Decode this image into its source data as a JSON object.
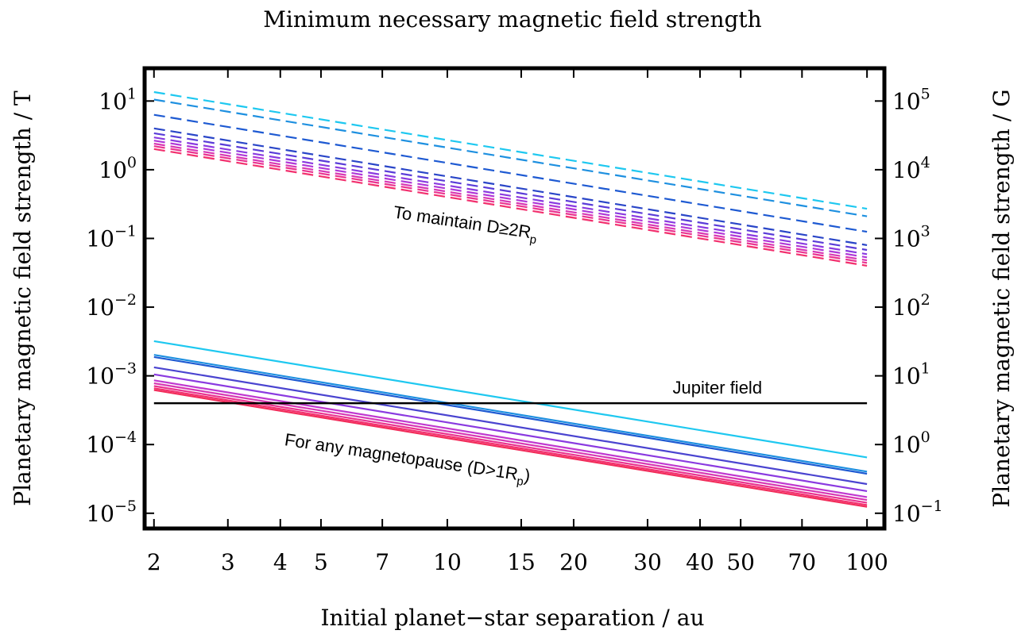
{
  "chart_data": {
    "type": "line",
    "title": "Minimum necessary magnetic field strength",
    "xlabel": "Initial planet−star separation / au",
    "ylabel_left": "Planetary magnetic field strength / T",
    "ylabel_right": "Planetary magnetic field strength / G",
    "xscale": "log",
    "yscale": "log",
    "xlim": [
      1.9,
      110
    ],
    "ylim": [
      6e-06,
      30
    ],
    "grid": false,
    "x_ticks": [
      2,
      3,
      4,
      5,
      7,
      10,
      15,
      20,
      30,
      40,
      50,
      70,
      100
    ],
    "x_tick_labels": [
      "2",
      "3",
      "4",
      "5",
      "7",
      "10",
      "15",
      "20",
      "30",
      "40",
      "50",
      "70",
      "100"
    ],
    "y_left_ticks": [
      {
        "value": 10,
        "base": "10",
        "exp": "1"
      },
      {
        "value": 1,
        "base": "10",
        "exp": "0"
      },
      {
        "value": 0.1,
        "base": "10",
        "exp": "−1"
      },
      {
        "value": 0.01,
        "base": "10",
        "exp": "−2"
      },
      {
        "value": 0.001,
        "base": "10",
        "exp": "−3"
      },
      {
        "value": 0.0001,
        "base": "10",
        "exp": "−4"
      },
      {
        "value": 1e-05,
        "base": "10",
        "exp": "−5"
      }
    ],
    "y_right_ticks": [
      {
        "value": 10,
        "base": "10",
        "exp": "5"
      },
      {
        "value": 1,
        "base": "10",
        "exp": "4"
      },
      {
        "value": 0.1,
        "base": "10",
        "exp": "3"
      },
      {
        "value": 0.01,
        "base": "10",
        "exp": "2"
      },
      {
        "value": 0.001,
        "base": "10",
        "exp": "1"
      },
      {
        "value": 0.0001,
        "base": "10",
        "exp": "0"
      },
      {
        "value": 1e-05,
        "base": "10",
        "exp": "−1"
      }
    ],
    "series": [
      {
        "group": "D>=2Rp",
        "style": "dashed",
        "color": "#1ec8f0",
        "x": [
          2,
          100
        ],
        "y": [
          13.5,
          0.27
        ]
      },
      {
        "group": "D>=2Rp",
        "style": "dashed",
        "color": "#1e90e0",
        "x": [
          2,
          100
        ],
        "y": [
          10.5,
          0.21
        ]
      },
      {
        "group": "D>=2Rp",
        "style": "dashed",
        "color": "#1e5ad2",
        "x": [
          2,
          100
        ],
        "y": [
          6.3,
          0.125
        ]
      },
      {
        "group": "D>=2Rp",
        "style": "dashed",
        "color": "#2a46c8",
        "x": [
          2,
          100
        ],
        "y": [
          4.0,
          0.08
        ]
      },
      {
        "group": "D>=2Rp",
        "style": "dashed",
        "color": "#5a3cd8",
        "x": [
          2,
          100
        ],
        "y": [
          3.4,
          0.068
        ]
      },
      {
        "group": "D>=2Rp",
        "style": "dashed",
        "color": "#8a3ae0",
        "x": [
          2,
          100
        ],
        "y": [
          2.95,
          0.059
        ]
      },
      {
        "group": "D>=2Rp",
        "style": "dashed",
        "color": "#b038d8",
        "x": [
          2,
          100
        ],
        "y": [
          2.65,
          0.053
        ]
      },
      {
        "group": "D>=2Rp",
        "style": "dashed",
        "color": "#d838b4",
        "x": [
          2,
          100
        ],
        "y": [
          2.4,
          0.048
        ]
      },
      {
        "group": "D>=2Rp",
        "style": "dashed",
        "color": "#ea3490",
        "x": [
          2,
          100
        ],
        "y": [
          2.2,
          0.044
        ]
      },
      {
        "group": "D>=2Rp",
        "style": "dashed",
        "color": "#f2306e",
        "x": [
          2,
          100
        ],
        "y": [
          2.0,
          0.04
        ]
      },
      {
        "group": "D>1Rp",
        "style": "solid",
        "color": "#1ec8f0",
        "x": [
          2,
          100
        ],
        "y": [
          0.0032,
          6.5e-05
        ]
      },
      {
        "group": "D>1Rp",
        "style": "solid",
        "color": "#1e90e0",
        "x": [
          2,
          100
        ],
        "y": [
          0.00202,
          4.04e-05
        ]
      },
      {
        "group": "D>1Rp",
        "style": "solid",
        "color": "#1e5ad2",
        "x": [
          2,
          100
        ],
        "y": [
          0.00188,
          3.76e-05
        ]
      },
      {
        "group": "D>1Rp",
        "style": "solid",
        "color": "#4a44d0",
        "x": [
          2,
          100
        ],
        "y": [
          0.00133,
          2.66e-05
        ]
      },
      {
        "group": "D>1Rp",
        "style": "solid",
        "color": "#8a3ae0",
        "x": [
          2,
          100
        ],
        "y": [
          0.00105,
          2.1e-05
        ]
      },
      {
        "group": "D>1Rp",
        "style": "solid",
        "color": "#c038d0",
        "x": [
          2,
          100
        ],
        "y": [
          0.00086,
          1.72e-05
        ]
      },
      {
        "group": "D>1Rp",
        "style": "solid",
        "color": "#d838b4",
        "x": [
          2,
          100
        ],
        "y": [
          0.00078,
          1.56e-05
        ]
      },
      {
        "group": "D>1Rp",
        "style": "solid",
        "color": "#ea3490",
        "x": [
          2,
          100
        ],
        "y": [
          0.00071,
          1.42e-05
        ]
      },
      {
        "group": "D>1Rp",
        "style": "solid",
        "color": "#f2306e",
        "x": [
          2,
          100
        ],
        "y": [
          0.00066,
          1.32e-05
        ]
      },
      {
        "group": "D>1Rp",
        "style": "solid",
        "color": "#f22c5a",
        "x": [
          2,
          100
        ],
        "y": [
          0.00062,
          1.24e-05
        ]
      },
      {
        "group": "reference",
        "style": "solid",
        "color": "#000000",
        "x": [
          2,
          100
        ],
        "y": [
          0.0004,
          0.0004
        ]
      }
    ],
    "annotations": [
      {
        "id": "dashed",
        "text": "To maintain D≥2R",
        "sub": "p",
        "suffix": "",
        "x": 11,
        "y": 0.14,
        "angle_deg": 8.5
      },
      {
        "id": "solid",
        "text": "For any magnetopause (D>1R",
        "sub": "p",
        "suffix": ")",
        "x": 8,
        "y": 5.3e-05,
        "angle_deg": 8.5
      },
      {
        "id": "jupiter",
        "text": "Jupiter field",
        "sub": "",
        "suffix": "",
        "x": 44,
        "y": 0.00055,
        "angle_deg": 0
      }
    ]
  }
}
